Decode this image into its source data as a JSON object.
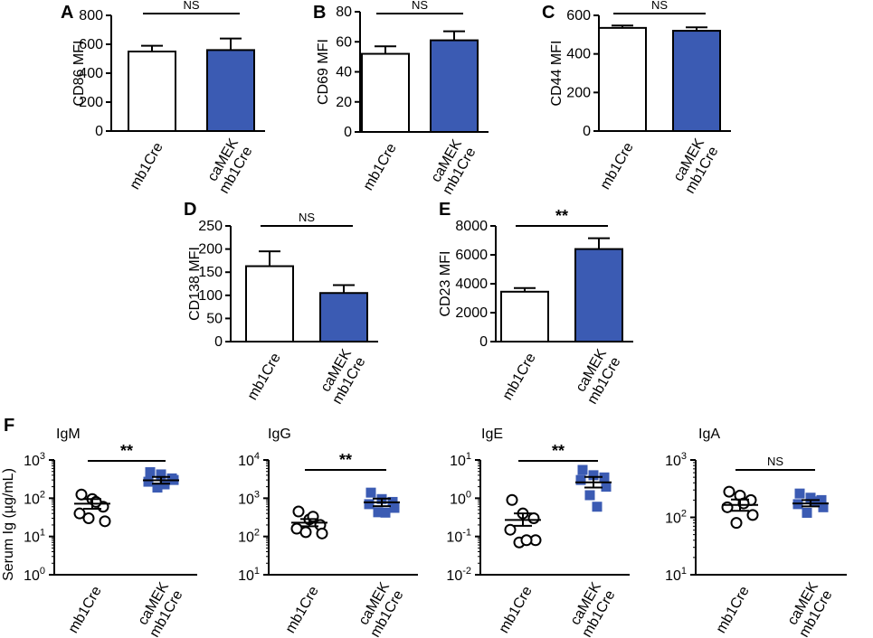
{
  "colors": {
    "caMEK": "#3b5bb3",
    "control": "#ffffff",
    "stroke": "#000000"
  },
  "categories_top": [
    "mb1Cre",
    "caMEK\nmb1Cre"
  ],
  "chart_data": [
    {
      "type": "bar",
      "panel": "A",
      "ylabel": "CD86 MFI",
      "ylim": [
        0,
        800
      ],
      "ticks": [
        0,
        200,
        400,
        600,
        800
      ],
      "categories": [
        "mb1Cre",
        "caMEK\nmb1Cre"
      ],
      "values": [
        550,
        560
      ],
      "errors": [
        40,
        80
      ],
      "significance": "NS"
    },
    {
      "type": "bar",
      "panel": "B",
      "ylabel": "CD69 MFI",
      "ylim": [
        0,
        80
      ],
      "ticks": [
        0,
        20,
        40,
        60,
        80
      ],
      "categories": [
        "mb1Cre",
        "caMEK\nmb1Cre"
      ],
      "values": [
        52,
        61
      ],
      "errors": [
        5,
        6
      ],
      "significance": "NS"
    },
    {
      "type": "bar",
      "panel": "C",
      "ylabel": "CD44 MFI",
      "ylim": [
        0,
        600
      ],
      "ticks": [
        0,
        200,
        400,
        600
      ],
      "categories": [
        "mb1Cre",
        "caMEK\nmb1Cre"
      ],
      "values": [
        535,
        520
      ],
      "errors": [
        12,
        18
      ],
      "significance": "NS"
    },
    {
      "type": "bar",
      "panel": "D",
      "ylabel": "CD138 MFI",
      "ylim": [
        0,
        250
      ],
      "ticks": [
        0,
        50,
        100,
        150,
        200,
        250
      ],
      "categories": [
        "mb1Cre",
        "caMEK\nmb1Cre"
      ],
      "values": [
        163,
        105
      ],
      "errors": [
        32,
        17
      ],
      "significance": "NS"
    },
    {
      "type": "bar",
      "panel": "E",
      "ylabel": "CD23 MFI",
      "ylim": [
        0,
        8000
      ],
      "ticks": [
        0,
        2000,
        4000,
        6000,
        8000
      ],
      "categories": [
        "mb1Cre",
        "caMEK\nmb1Cre"
      ],
      "values": [
        3450,
        6400
      ],
      "errors": [
        250,
        750
      ],
      "significance": "**"
    },
    {
      "type": "scatter",
      "panel": "F",
      "title": "IgM",
      "ylabel": "Serum Ig  (µg/mL)",
      "yscale": "log",
      "ylim_exp": [
        0,
        3
      ],
      "tick_exponents": [
        0,
        1,
        2,
        3
      ],
      "categories": [
        "mb1Cre",
        "caMEK\nmb1Cre"
      ],
      "groups": [
        {
          "values": [
            125,
            95,
            60,
            40,
            25,
            30,
            80
          ],
          "mean": 72,
          "sem_low": 53,
          "sem_high": 95
        },
        {
          "values": [
            480,
            420,
            330,
            270,
            300,
            190,
            230
          ],
          "mean": 295,
          "sem_low": 240,
          "sem_high": 360
        }
      ],
      "significance": "**"
    },
    {
      "type": "scatter",
      "panel": "F",
      "title": "IgG",
      "ylabel": "",
      "yscale": "log",
      "ylim_exp": [
        1,
        4
      ],
      "tick_exponents": [
        1,
        2,
        3,
        4
      ],
      "categories": [
        "mb1Cre",
        "caMEK\nmb1Cre"
      ],
      "groups": [
        {
          "values": [
            450,
            280,
            200,
            160,
            120,
            130,
            330
          ],
          "mean": 230,
          "sem_low": 185,
          "sem_high": 285
        },
        {
          "values": [
            1400,
            950,
            800,
            700,
            560,
            430,
            420
          ],
          "mean": 780,
          "sem_low": 620,
          "sem_high": 980
        }
      ],
      "significance": "**"
    },
    {
      "type": "scatter",
      "panel": "F",
      "title": "IgE",
      "ylabel": "",
      "yscale": "log",
      "ylim_exp": [
        -2,
        1
      ],
      "tick_exponents": [
        -2,
        -1,
        0,
        1
      ],
      "categories": [
        "mb1Cre",
        "caMEK\nmb1Cre"
      ],
      "groups": [
        {
          "values": [
            0.9,
            0.4,
            0.3,
            0.15,
            0.08,
            0.07,
            0.08
          ],
          "mean": 0.27,
          "sem_low": 0.19,
          "sem_high": 0.4
        },
        {
          "values": [
            5.5,
            4.0,
            3.5,
            3.0,
            2.0,
            1.2,
            0.6
          ],
          "mean": 2.6,
          "sem_low": 1.9,
          "sem_high": 3.6
        }
      ],
      "significance": "**"
    },
    {
      "type": "scatter",
      "panel": "F",
      "title": "IgA",
      "ylabel": "",
      "yscale": "log",
      "ylim_exp": [
        1,
        3
      ],
      "tick_exponents": [
        1,
        2,
        3
      ],
      "categories": [
        "mb1Cre",
        "caMEK\nmb1Cre"
      ],
      "groups": [
        {
          "values": [
            280,
            240,
            200,
            150,
            110,
            80,
            175
          ],
          "mean": 165,
          "sem_low": 130,
          "sem_high": 205
        },
        {
          "values": [
            260,
            220,
            200,
            170,
            150,
            120,
            190
          ],
          "mean": 175,
          "sem_low": 155,
          "sem_high": 200
        }
      ],
      "significance": "NS"
    }
  ]
}
